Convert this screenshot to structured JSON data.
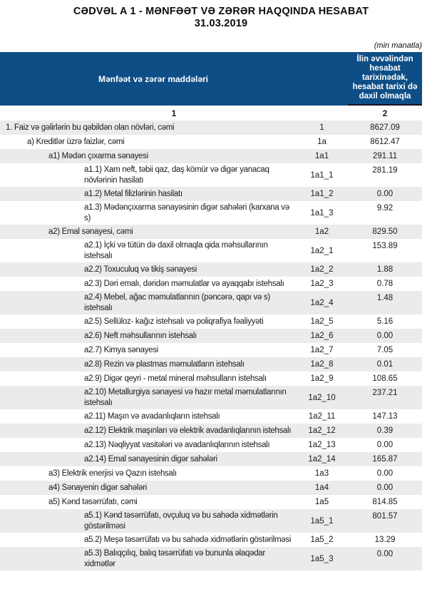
{
  "title": {
    "line1": "CƏDVƏL A 1 - MƏNFƏƏT VƏ ZƏRƏR HAQQINDA HESABAT",
    "line2": "31.03.2019"
  },
  "unit_note": "(min manatla)",
  "colors": {
    "header_bg": "#0e4e86",
    "stripe": "#ebebeb",
    "header_border": "#15151f"
  },
  "table": {
    "header": {
      "items_col": "Mənfəət və zərər maddələri",
      "value_col": "İlin əvvəlindən hesabat tarixinədək, hesabat tarixi də daxil olmaqla"
    },
    "numbering": {
      "col1": "1",
      "col2": "2"
    },
    "rows": [
      {
        "label": "1. Faiz və gəlirlərin bu qəbildən olan növləri, cəmi",
        "code": "1",
        "value": "8627.09",
        "indent": 0
      },
      {
        "label": "a) Kreditlər üzrə faizlər, cəmi",
        "code": "1a",
        "value": "8612.47",
        "indent": 1
      },
      {
        "label": "a1) Mədən çıxarma sənayesi",
        "code": "1a1",
        "value": "291.11",
        "indent": 2
      },
      {
        "label": "a1.1) Xam neft, təbii qaz, daş kömür və digər yanacaq növlərinin hasilatı",
        "code": "1a1_1",
        "value": "281.19",
        "indent": 3
      },
      {
        "label": "a1.2) Metal filizlərinin hasilatı",
        "code": "1a1_2",
        "value": "0.00",
        "indent": 3
      },
      {
        "label": "a1.3) Mədənçıxarma sənayəsinin digər sahələri (karxana və s)",
        "code": "1a1_3",
        "value": "9.92",
        "indent": 3
      },
      {
        "label": "a2) Emal sənayesi, cəmi",
        "code": "1a2",
        "value": "829.50",
        "indent": 2
      },
      {
        "label": "a2.1) İçki və tütün də daxil olmaqla qida məhsullarının istehsalı",
        "code": "1a2_1",
        "value": "153.89",
        "indent": 3
      },
      {
        "label": "a2.2) Toxuculuq və tikiş sənayesi",
        "code": "1a2_2",
        "value": "1.88",
        "indent": 3
      },
      {
        "label": "a2.3) Dəri emalı, dəridən məmulatlar və ayaqqabı istehsalı",
        "code": "1a2_3",
        "value": "0.78",
        "indent": 3
      },
      {
        "label": "a2.4) Mebel, ağac məmulatlarının (pəncərə, qapı və s) istehsalı",
        "code": "1a2_4",
        "value": "1.48",
        "indent": 3
      },
      {
        "label": "a2.5) Sellüloz- kağız istehsalı və poliqrafiya fəaliyyəti",
        "code": "1a2_5",
        "value": "5.16",
        "indent": 3
      },
      {
        "label": "a2.6) Neft məhsullarının istehsalı",
        "code": "1a2_6",
        "value": "0.00",
        "indent": 3
      },
      {
        "label": "a2.7) Kimya sənayesi",
        "code": "1a2_7",
        "value": "7.05",
        "indent": 3
      },
      {
        "label": "a2.8) Rezin və plastmas məmulatların istehsalı",
        "code": "1a2_8",
        "value": "0.01",
        "indent": 3
      },
      {
        "label": "a2.9) Digər qeyri - metal mineral məhsulların istehsalı",
        "code": "1a2_9",
        "value": "108.65",
        "indent": 3
      },
      {
        "label": "a2.10) Metallurgiya sənayesi və hazır metal məmulatlarının istehsalı",
        "code": "1a2_10",
        "value": "237.21",
        "indent": 3
      },
      {
        "label": "a2.11) Maşın və avadanlıqların istehsalı",
        "code": "1a2_11",
        "value": "147.13",
        "indent": 3
      },
      {
        "label": "a2.12) Elektrik maşınları və elektrik avadanlıqlarının istehsalı",
        "code": "1a2_12",
        "value": "0.39",
        "indent": 3
      },
      {
        "label": "a2.13) Nəqliyyat vasitələri və avadanlıqlarının istehsalı",
        "code": "1a2_13",
        "value": "0.00",
        "indent": 3
      },
      {
        "label": "a2.14) Emal sənayesinin digər sahələri",
        "code": "1a2_14",
        "value": "165.87",
        "indent": 3
      },
      {
        "label": "a3) Elektrik enerjisi və Qazın istehsalı",
        "code": "1a3",
        "value": "0.00",
        "indent": 2
      },
      {
        "label": "a4) Sənayenin digər sahələri",
        "code": "1a4",
        "value": "0.00",
        "indent": 2
      },
      {
        "label": "a5) Kənd təsərrüfatı, cəmi",
        "code": "1a5",
        "value": "814.85",
        "indent": 2
      },
      {
        "label": "a5.1) Kənd təsərrüfatı, ovçuluq və bu sahədə xidmətlərin göstərilməsi",
        "code": "1a5_1",
        "value": "801.57",
        "indent": 3
      },
      {
        "label": "a5.2) Meşə təsərrüfatı və bu sahədə xidmətlərin göstərilməsi",
        "code": "1a5_2",
        "value": "13.29",
        "indent": 3
      },
      {
        "label": "a5.3) Balıqçılıq, balıq təsərrüfatı və bununla əlaqədar xidmətlər",
        "code": "1a5_3",
        "value": "0.00",
        "indent": 3
      }
    ]
  }
}
